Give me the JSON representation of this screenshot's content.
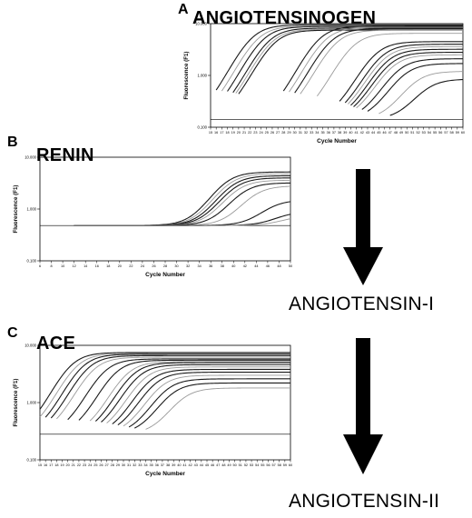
{
  "panels": [
    {
      "letter": "A",
      "title": "ANGIOTENSINOGEN"
    },
    {
      "letter": "B",
      "title": "RENIN"
    },
    {
      "letter": "C",
      "title": "ACE"
    }
  ],
  "products": {
    "first": "ANGIOTENSIN-I",
    "second": "ANGIOTENSIN-II"
  },
  "chart_data": [
    {
      "type": "line",
      "panel": "A",
      "xlabel": "Cycle Number",
      "ylabel": "Fluorescence (F1)",
      "x_ticks": [
        15,
        16,
        17,
        18,
        19,
        20,
        21,
        22,
        23,
        24,
        25,
        26,
        27,
        28,
        29,
        30,
        31,
        32,
        33,
        34,
        35,
        36,
        37,
        38,
        39,
        40,
        41,
        42,
        43,
        44,
        45,
        46,
        47,
        48,
        49,
        50,
        51,
        52,
        53,
        54,
        55,
        56,
        57,
        58,
        59,
        60
      ],
      "y_ticks": [
        "0.100",
        "1.000",
        "10.000"
      ],
      "xlim": [
        15,
        60
      ],
      "ylim": [
        0.1,
        10
      ],
      "y_scale": "log",
      "baseline": 0.14,
      "curves": [
        {
          "ct": 22,
          "plateau": 9.5,
          "gray": false
        },
        {
          "ct": 23,
          "plateau": 9.0,
          "gray": true
        },
        {
          "ct": 24,
          "plateau": 8.8,
          "gray": false
        },
        {
          "ct": 25,
          "plateau": 8.2,
          "gray": false
        },
        {
          "ct": 25.5,
          "plateau": 7.8,
          "gray": true
        },
        {
          "ct": 26,
          "plateau": 7.5,
          "gray": false
        },
        {
          "ct": 34,
          "plateau": 9.0,
          "gray": false
        },
        {
          "ct": 35,
          "plateau": 8.5,
          "gray": true
        },
        {
          "ct": 36,
          "plateau": 8.0,
          "gray": false
        },
        {
          "ct": 37,
          "plateau": 7.5,
          "gray": true
        },
        {
          "ct": 40,
          "plateau": 6.5,
          "gray": true
        },
        {
          "ct": 44,
          "plateau": 4.5,
          "gray": false
        },
        {
          "ct": 45,
          "plateau": 4.0,
          "gray": false
        },
        {
          "ct": 45.5,
          "plateau": 3.6,
          "gray": true
        },
        {
          "ct": 46,
          "plateau": 3.2,
          "gray": false
        },
        {
          "ct": 46.5,
          "plateau": 2.8,
          "gray": false
        },
        {
          "ct": 47,
          "plateau": 2.5,
          "gray": true
        },
        {
          "ct": 48,
          "plateau": 2.1,
          "gray": false
        },
        {
          "ct": 49,
          "plateau": 1.7,
          "gray": false
        },
        {
          "ct": 51,
          "plateau": 1.2,
          "gray": true
        },
        {
          "ct": 53,
          "plateau": 0.85,
          "gray": false
        }
      ]
    },
    {
      "type": "line",
      "panel": "B",
      "xlabel": "Cycle Number",
      "ylabel": "Fluorescence (F1)",
      "x_ticks": [
        6,
        8,
        10,
        12,
        14,
        16,
        18,
        20,
        22,
        24,
        26,
        28,
        30,
        32,
        34,
        36,
        38,
        40,
        42,
        44,
        46,
        48,
        50
      ],
      "y_ticks": [
        "0.100",
        "1.000",
        "10.000"
      ],
      "xlim": [
        6,
        50
      ],
      "ylim": [
        0.1,
        10
      ],
      "y_scale": "log",
      "baseline": 0.48,
      "curves": [
        {
          "ct": 38,
          "plateau": 5.2,
          "gray": false
        },
        {
          "ct": 38.5,
          "plateau": 4.8,
          "gray": true
        },
        {
          "ct": 39,
          "plateau": 4.4,
          "gray": false
        },
        {
          "ct": 39.5,
          "plateau": 4.0,
          "gray": false
        },
        {
          "ct": 40,
          "plateau": 3.6,
          "gray": true
        },
        {
          "ct": 41,
          "plateau": 3.2,
          "gray": false
        },
        {
          "ct": 43,
          "plateau": 2.8,
          "gray": true
        },
        {
          "ct": 46,
          "plateau": 1.5,
          "gray": false
        },
        {
          "ct": 48,
          "plateau": 0.9,
          "gray": false
        },
        {
          "ct": 49,
          "plateau": 0.75,
          "gray": true
        }
      ]
    },
    {
      "type": "line",
      "panel": "C",
      "xlabel": "Cycle Number",
      "ylabel": "Fluorescence (F1)",
      "x_ticks": [
        15,
        16,
        17,
        18,
        19,
        20,
        21,
        22,
        23,
        24,
        25,
        26,
        27,
        28,
        29,
        30,
        31,
        32,
        33,
        34,
        35,
        36,
        37,
        38,
        39,
        40,
        41,
        42,
        43,
        44,
        45,
        46,
        47,
        48,
        49,
        50,
        51,
        52,
        53,
        54,
        55,
        56,
        57,
        58,
        59,
        60
      ],
      "y_ticks": [
        "0.100",
        "1.000",
        "10.000"
      ],
      "xlim": [
        15,
        60
      ],
      "ylim": [
        0.1,
        10
      ],
      "y_scale": "log",
      "baseline": 0.28,
      "curves": [
        {
          "ct": 20,
          "plateau": 7.5,
          "gray": false
        },
        {
          "ct": 21,
          "plateau": 7.2,
          "gray": true
        },
        {
          "ct": 22,
          "plateau": 7.0,
          "gray": false
        },
        {
          "ct": 23,
          "plateau": 6.6,
          "gray": false
        },
        {
          "ct": 24,
          "plateau": 6.2,
          "gray": true
        },
        {
          "ct": 26,
          "plateau": 5.8,
          "gray": false
        },
        {
          "ct": 28,
          "plateau": 5.5,
          "gray": false
        },
        {
          "ct": 30,
          "plateau": 5.2,
          "gray": true
        },
        {
          "ct": 31,
          "plateau": 5.0,
          "gray": false
        },
        {
          "ct": 32,
          "plateau": 4.6,
          "gray": false
        },
        {
          "ct": 33,
          "plateau": 4.2,
          "gray": true
        },
        {
          "ct": 34,
          "plateau": 3.8,
          "gray": false
        },
        {
          "ct": 35,
          "plateau": 3.4,
          "gray": false
        },
        {
          "ct": 36,
          "plateau": 3.0,
          "gray": true
        },
        {
          "ct": 37,
          "plateau": 2.6,
          "gray": false
        },
        {
          "ct": 38,
          "plateau": 2.2,
          "gray": false
        },
        {
          "ct": 40,
          "plateau": 1.8,
          "gray": true
        }
      ]
    }
  ]
}
